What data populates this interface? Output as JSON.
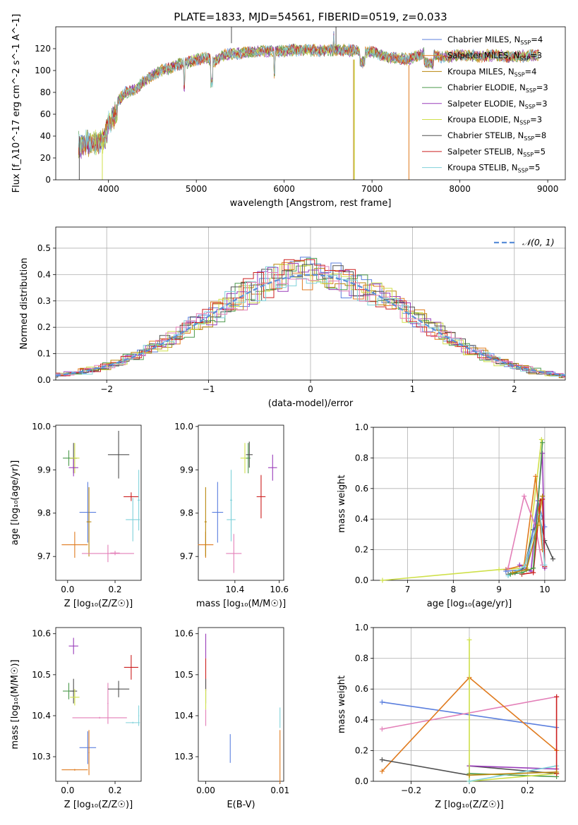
{
  "title": "PLATE=1833, MJD=54561, FIBERID=0519, z=0.033",
  "colors": {
    "blue": "#5b7fde",
    "orange": "#e07b1f",
    "olive": "#b8860b",
    "green": "#4c9a4c",
    "purple": "#9a3dba",
    "yellow": "#cfe04a",
    "gray": "#505050",
    "red": "#cc1f1f",
    "cyan": "#7fd1d9",
    "pink": "#e37fb8"
  },
  "chart_data": [
    {
      "id": "spectrum",
      "type": "line",
      "xlabel": "wavelength [Angstrom, rest frame]",
      "ylabel": "Flux [f_λ10^-17 erg cm^-2 s^-1 A^-1]",
      "xlim": [
        3400,
        9200
      ],
      "ylim": [
        0,
        140
      ],
      "xticks": [
        4000,
        5000,
        6000,
        7000,
        8000,
        9000
      ],
      "yticks": [
        0,
        20,
        40,
        60,
        80,
        100,
        120
      ],
      "continuum": {
        "x": [
          3650,
          3800,
          3950,
          4000,
          4100,
          4200,
          4300,
          4400,
          4500,
          4600,
          4700,
          4800,
          4900,
          5000,
          5100,
          5200,
          5300,
          5400,
          5500,
          5600,
          5800,
          6000,
          6200,
          6400,
          6600,
          6800,
          7000,
          7200,
          7400,
          7600,
          7800,
          8000,
          8200,
          8400,
          8600,
          8800,
          8900
        ],
        "y": [
          40,
          42,
          45,
          60,
          72,
          80,
          82,
          90,
          95,
          100,
          102,
          106,
          107,
          110,
          112,
          108,
          114,
          115,
          116,
          117,
          118,
          118,
          119,
          118,
          119,
          118,
          117,
          112,
          110,
          116,
          112,
          114,
          113,
          114,
          112,
          114,
          114
        ]
      },
      "legend": [
        {
          "label": "Chabrier MILES, N",
          "sub": "SSP",
          "tail": "=4",
          "color": "blue"
        },
        {
          "label": "Salpeter MILES, N",
          "sub": "SSP",
          "tail": "=3",
          "color": "orange"
        },
        {
          "label": "Kroupa MILES, N",
          "sub": "SSP",
          "tail": "=4",
          "color": "olive"
        },
        {
          "label": "Chabrier ELODIE, N",
          "sub": "SSP",
          "tail": "=3",
          "color": "green"
        },
        {
          "label": "Salpeter ELODIE, N",
          "sub": "SSP",
          "tail": "=3",
          "color": "purple"
        },
        {
          "label": "Kroupa ELODIE, N",
          "sub": "SSP",
          "tail": "=3",
          "color": "yellow"
        },
        {
          "label": "Chabrier STELIB, N",
          "sub": "SSP",
          "tail": "=8",
          "color": "gray"
        },
        {
          "label": "Salpeter STELIB, N",
          "sub": "SSP",
          "tail": "=5",
          "color": "red"
        },
        {
          "label": "Kroupa STELIB, N",
          "sub": "SSP",
          "tail": "=5",
          "color": "cyan"
        }
      ]
    },
    {
      "id": "residuals",
      "type": "histogram",
      "xlabel": "(data-model)/error",
      "ylabel": "Normed distribution",
      "xlim": [
        -2.5,
        2.5
      ],
      "ylim": [
        0,
        0.58
      ],
      "xticks": [
        -2,
        -1,
        0,
        1,
        2
      ],
      "xticklabels": [
        "−2",
        "−1",
        "0",
        "1",
        "2"
      ],
      "yticks": [
        0.0,
        0.1,
        0.2,
        0.3,
        0.4,
        0.5
      ],
      "yticklabels": [
        "0.0",
        "0.1",
        "0.2",
        "0.3",
        "0.4",
        "0.5"
      ],
      "grid": true,
      "legend": "𝒩(0, 1)",
      "bin_width": 0.1
    },
    {
      "id": "age_vs_Z",
      "type": "scatter",
      "xlabel": "Z [log₁₀(Z/Z☉)]",
      "ylabel": "age  [log₁₀(age/yr)]",
      "xlim": [
        -0.05,
        0.31
      ],
      "ylim": [
        9.645,
        10.003
      ],
      "xticks": [
        0.0,
        0.2
      ],
      "xticklabels": [
        "0.0",
        "0.2"
      ],
      "yticks": [
        9.7,
        9.8,
        9.9,
        10.0
      ],
      "yticklabels": [
        "9.7",
        "9.8",
        "9.9",
        "10.0"
      ],
      "points": [
        {
          "x": 0.005,
          "y": 9.927,
          "ex": 0.025,
          "ey": 0.018,
          "color": "green"
        },
        {
          "x": 0.025,
          "y": 9.927,
          "ex": 0.015,
          "ey": 0.035,
          "color": "gray"
        },
        {
          "x": 0.03,
          "y": 9.927,
          "ex": 0.02,
          "ey": 0.035,
          "color": "yellow"
        },
        {
          "x": 0.025,
          "y": 9.905,
          "ex": 0.02,
          "ey": 0.02,
          "color": "purple"
        },
        {
          "x": 0.085,
          "y": 9.802,
          "ex": 0.035,
          "ey": 0.07,
          "color": "blue"
        },
        {
          "x": 0.09,
          "y": 9.78,
          "ex": 0.01,
          "ey": 0.08,
          "color": "olive"
        },
        {
          "x": 0.03,
          "y": 9.727,
          "ex": 0.055,
          "ey": 0.03,
          "color": "orange"
        },
        {
          "x": 0.17,
          "y": 9.707,
          "ex": 0.11,
          "ey": 0.02,
          "color": "pink"
        },
        {
          "x": 0.2,
          "y": 9.708,
          "ex": 0.02,
          "ey": 0.005,
          "color": "pink"
        },
        {
          "x": 0.215,
          "y": 9.935,
          "ex": 0.045,
          "ey": 0.055,
          "color": "gray"
        },
        {
          "x": 0.268,
          "y": 9.838,
          "ex": 0.032,
          "ey": 0.01,
          "color": "red"
        },
        {
          "x": 0.275,
          "y": 9.785,
          "ex": 0.03,
          "ey": 0.05,
          "color": "cyan"
        },
        {
          "x": 0.3,
          "y": 9.83,
          "ex": 0.005,
          "ey": 0.07,
          "color": "cyan"
        }
      ]
    },
    {
      "id": "age_vs_mass",
      "type": "scatter",
      "xlabel": "mass [log₁₀(M/M☉)]",
      "ylabel": "",
      "xlim": [
        10.235,
        10.62
      ],
      "ylim": [
        9.645,
        10.003
      ],
      "xticks": [
        10.4,
        10.6
      ],
      "xticklabels": [
        "10.4",
        "10.6"
      ],
      "yticks": [
        9.7,
        9.8,
        9.9,
        10.0
      ],
      "yticklabels": [
        "9.7",
        "9.8",
        "9.9",
        "10.0"
      ],
      "points": [
        {
          "x": 10.322,
          "y": 9.802,
          "ex": 0.025,
          "ey": 0.07,
          "color": "blue"
        },
        {
          "x": 10.268,
          "y": 9.727,
          "ex": 0.035,
          "ey": 0.03,
          "color": "orange"
        },
        {
          "x": 10.268,
          "y": 9.78,
          "ex": 0.005,
          "ey": 0.08,
          "color": "olive"
        },
        {
          "x": 10.383,
          "y": 9.785,
          "ex": 0.02,
          "ey": 0.05,
          "color": "cyan"
        },
        {
          "x": 10.383,
          "y": 9.83,
          "ex": 0.005,
          "ey": 0.07,
          "color": "cyan"
        },
        {
          "x": 10.395,
          "y": 9.707,
          "ex": 0.035,
          "ey": 0.045,
          "color": "pink"
        },
        {
          "x": 10.445,
          "y": 9.927,
          "ex": 0.02,
          "ey": 0.035,
          "color": "yellow"
        },
        {
          "x": 10.46,
          "y": 9.927,
          "ex": 0.01,
          "ey": 0.035,
          "color": "green"
        },
        {
          "x": 10.465,
          "y": 9.935,
          "ex": 0.015,
          "ey": 0.03,
          "color": "gray"
        },
        {
          "x": 10.518,
          "y": 9.838,
          "ex": 0.02,
          "ey": 0.05,
          "color": "red"
        },
        {
          "x": 10.57,
          "y": 9.905,
          "ex": 0.02,
          "ey": 0.03,
          "color": "purple"
        }
      ]
    },
    {
      "id": "mass_weight_vs_age",
      "type": "line",
      "xlabel": "age  [log₁₀(age/yr)]",
      "ylabel": "mass weight",
      "xlim": [
        6.25,
        10.45
      ],
      "ylim": [
        0,
        1.0
      ],
      "xticks": [
        7,
        8,
        9,
        10
      ],
      "xticklabels": [
        "7",
        "8",
        "9",
        "10"
      ],
      "yticks": [
        0,
        0.2,
        0.4,
        0.6,
        0.8,
        1.0
      ],
      "yticklabels": [
        "0.0",
        "0.2",
        "0.4",
        "0.6",
        "0.8",
        "1.0"
      ],
      "grid": true,
      "series": [
        {
          "color": "yellow",
          "x": [
            6.45,
            9.0,
            9.6,
            9.93
          ],
          "y": [
            0.0,
            0.07,
            0.08,
            0.92
          ]
        },
        {
          "color": "gray",
          "x": [
            9.2,
            9.35,
            9.55,
            9.75,
            9.9,
            10.0,
            10.18
          ],
          "y": [
            0.04,
            0.05,
            0.08,
            0.33,
            0.4,
            0.26,
            0.14
          ]
        },
        {
          "color": "orange",
          "x": [
            9.15,
            9.55,
            9.8,
            9.95
          ],
          "y": [
            0.07,
            0.1,
            0.68,
            0.2
          ]
        },
        {
          "color": "blue",
          "x": [
            9.15,
            9.6,
            9.85,
            10.0
          ],
          "y": [
            0.06,
            0.07,
            0.52,
            0.35
          ]
        },
        {
          "color": "pink",
          "x": [
            9.2,
            9.55,
            9.8,
            9.95
          ],
          "y": [
            0.08,
            0.55,
            0.35,
            0.1
          ]
        },
        {
          "color": "purple",
          "x": [
            9.45,
            9.7,
            9.95,
            10.0
          ],
          "y": [
            0.1,
            0.06,
            0.83,
            0.08
          ]
        },
        {
          "color": "red",
          "x": [
            9.5,
            9.75,
            9.9,
            9.95,
            10.0
          ],
          "y": [
            0.04,
            0.05,
            0.52,
            0.53,
            0.09
          ]
        },
        {
          "color": "cyan",
          "x": [
            9.2,
            9.55,
            9.9,
            10.0
          ],
          "y": [
            0.03,
            0.09,
            0.43,
            0.1
          ]
        },
        {
          "color": "green",
          "x": [
            9.25,
            9.5,
            9.75,
            9.95
          ],
          "y": [
            0.04,
            0.05,
            0.08,
            0.9
          ]
        },
        {
          "color": "olive",
          "x": [
            9.3,
            9.6,
            9.85,
            9.95
          ],
          "y": [
            0.05,
            0.07,
            0.36,
            0.55
          ]
        }
      ]
    },
    {
      "id": "mass_vs_Z",
      "type": "scatter",
      "xlabel": "Z [log₁₀(Z/Z☉)]",
      "ylabel": "mass [log₁₀(M/M☉)]",
      "xlim": [
        -0.05,
        0.31
      ],
      "ylim": [
        10.24,
        10.615
      ],
      "xticks": [
        0.0,
        0.2
      ],
      "xticklabels": [
        "0.0",
        "0.2"
      ],
      "yticks": [
        10.3,
        10.4,
        10.5,
        10.6
      ],
      "yticklabels": [
        "10.3",
        "10.4",
        "10.5",
        "10.6"
      ],
      "points": [
        {
          "x": 0.025,
          "y": 10.57,
          "ex": 0.02,
          "ey": 0.02,
          "color": "purple"
        },
        {
          "x": 0.005,
          "y": 10.46,
          "ex": 0.025,
          "ey": 0.02,
          "color": "green"
        },
        {
          "x": 0.025,
          "y": 10.46,
          "ex": 0.015,
          "ey": 0.03,
          "color": "gray"
        },
        {
          "x": 0.03,
          "y": 10.445,
          "ex": 0.02,
          "ey": 0.02,
          "color": "yellow"
        },
        {
          "x": 0.135,
          "y": 10.395,
          "ex": 0.115,
          "ey": 0.002,
          "color": "pink"
        },
        {
          "x": 0.17,
          "y": 10.43,
          "ex": 0.002,
          "ey": 0.05,
          "color": "pink"
        },
        {
          "x": 0.085,
          "y": 10.322,
          "ex": 0.035,
          "ey": 0.04,
          "color": "blue"
        },
        {
          "x": 0.03,
          "y": 10.268,
          "ex": 0.055,
          "ey": 0.002,
          "color": "orange"
        },
        {
          "x": 0.09,
          "y": 10.31,
          "ex": 0.002,
          "ey": 0.055,
          "color": "orange"
        },
        {
          "x": 0.215,
          "y": 10.465,
          "ex": 0.045,
          "ey": 0.02,
          "color": "gray"
        },
        {
          "x": 0.268,
          "y": 10.518,
          "ex": 0.03,
          "ey": 0.03,
          "color": "red"
        },
        {
          "x": 0.275,
          "y": 10.383,
          "ex": 0.03,
          "ey": 0.002,
          "color": "cyan"
        },
        {
          "x": 0.3,
          "y": 10.4,
          "ex": 0.002,
          "ey": 0.025,
          "color": "cyan"
        }
      ]
    },
    {
      "id": "mass_vs_ebv",
      "type": "scatter",
      "xlabel": "E(B-V)",
      "ylabel": "",
      "xlim": [
        -0.001,
        0.0105
      ],
      "ylim": [
        10.24,
        10.615
      ],
      "xticks": [
        0.0,
        0.01
      ],
      "xticklabels": [
        "0.00",
        "0.01"
      ],
      "yticks": [
        10.3,
        10.4,
        10.5,
        10.6
      ],
      "yticklabels": [
        "10.3",
        "10.4",
        "10.5",
        "10.6"
      ],
      "points": [
        {
          "x": 0.0,
          "y": 10.57,
          "ex": 0,
          "ey": 0.03,
          "color": "purple"
        },
        {
          "x": 0.0,
          "y": 10.5,
          "ex": 0,
          "ey": 0.04,
          "color": "red"
        },
        {
          "x": 0.0,
          "y": 10.46,
          "ex": 0,
          "ey": 0.03,
          "color": "gray"
        },
        {
          "x": 0.0,
          "y": 10.44,
          "ex": 0,
          "ey": 0.025,
          "color": "yellow"
        },
        {
          "x": 0.0,
          "y": 10.395,
          "ex": 0,
          "ey": 0.02,
          "color": "pink"
        },
        {
          "x": 0.0033,
          "y": 10.32,
          "ex": 0,
          "ey": 0.035,
          "color": "blue"
        },
        {
          "x": 0.01,
          "y": 10.3,
          "ex": 0,
          "ey": 0.065,
          "color": "orange"
        },
        {
          "x": 0.01,
          "y": 10.395,
          "ex": 0,
          "ey": 0.025,
          "color": "cyan"
        }
      ]
    },
    {
      "id": "mass_weight_vs_Z",
      "type": "line",
      "xlabel": "Z [log₁₀(Z/Z☉)]",
      "ylabel": "mass weight",
      "xlim": [
        -0.33,
        0.33
      ],
      "ylim": [
        0,
        1.0
      ],
      "xticks": [
        -0.2,
        0.0,
        0.2
      ],
      "xticklabels": [
        "−0.2",
        "0.0",
        "0.2"
      ],
      "yticks": [
        0,
        0.2,
        0.4,
        0.6,
        0.8,
        1.0
      ],
      "yticklabels": [
        "0.0",
        "0.2",
        "0.4",
        "0.6",
        "0.8",
        "1.0"
      ],
      "grid": true,
      "series": [
        {
          "color": "blue",
          "x": [
            -0.3,
            0.3
          ],
          "y": [
            0.515,
            0.35
          ]
        },
        {
          "color": "pink",
          "x": [
            -0.3,
            0.3
          ],
          "y": [
            0.34,
            0.55
          ]
        },
        {
          "color": "orange",
          "x": [
            -0.3,
            0.0,
            0.3
          ],
          "y": [
            0.065,
            0.675,
            0.2
          ]
        },
        {
          "color": "gray",
          "x": [
            -0.3,
            0.0,
            0.0,
            0.3
          ],
          "y": [
            0.14,
            0.04,
            0.1,
            0.05
          ]
        },
        {
          "color": "purple",
          "x": [
            0.0,
            0.3
          ],
          "y": [
            0.1,
            0.08
          ]
        },
        {
          "color": "green",
          "x": [
            0.0,
            0.3
          ],
          "y": [
            0.05,
            0.03
          ]
        },
        {
          "color": "yellow",
          "x": [
            0.0,
            0.0,
            0.3
          ],
          "y": [
            0.92,
            0.0,
            0.05
          ]
        },
        {
          "color": "cyan",
          "x": [
            0.0,
            0.3
          ],
          "y": [
            0.0,
            0.1
          ]
        },
        {
          "color": "red",
          "x": [
            0.3,
            0.3
          ],
          "y": [
            0.05,
            0.55
          ]
        },
        {
          "color": "olive",
          "x": [
            0.0,
            0.3
          ],
          "y": [
            0.04,
            0.06
          ]
        }
      ]
    }
  ]
}
